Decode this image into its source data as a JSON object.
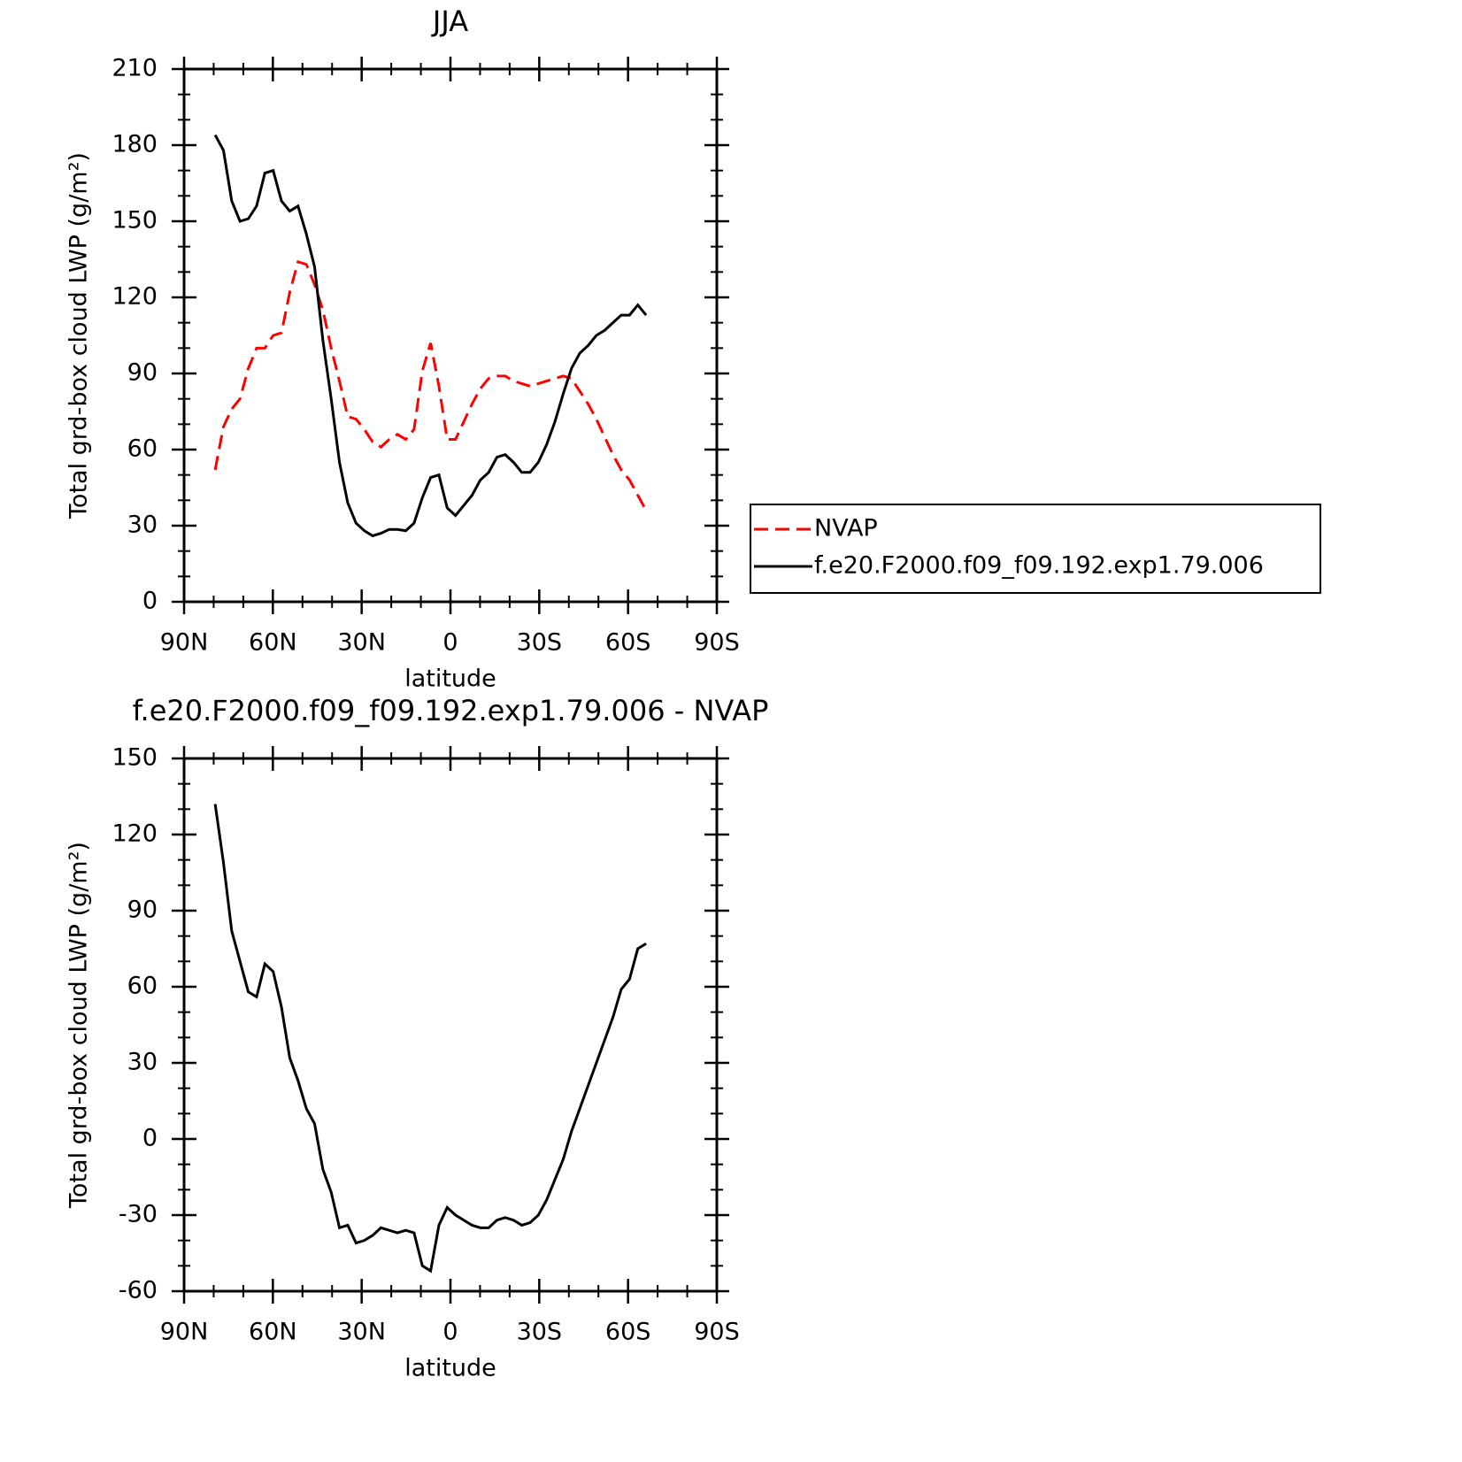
{
  "chart_data": [
    {
      "type": "line",
      "title": "JJA",
      "xlabel": "latitude",
      "ylabel": "Total grd-box cloud LWP (g/m²)",
      "x": [
        79.5,
        76.7,
        73.9,
        71.1,
        68.3,
        65.5,
        62.7,
        59.9,
        57.1,
        54.3,
        51.5,
        48.7,
        45.9,
        43.1,
        40.3,
        37.5,
        34.7,
        31.9,
        29.1,
        26.3,
        23.5,
        20.7,
        17.9,
        15.1,
        12.3,
        9.5,
        6.7,
        3.9,
        1.1,
        -1.7,
        -4.5,
        -7.3,
        -10.1,
        -12.9,
        -15.7,
        -18.5,
        -21.3,
        -24.1,
        -26.9,
        -29.7,
        -32.5,
        -35.3,
        -38.1,
        -40.9,
        -43.7,
        -46.5,
        -49.3,
        -52.1,
        -54.9,
        -57.7,
        -60.5,
        -63.3,
        -66.1
      ],
      "series": [
        {
          "name": "NVAP",
          "color": "#ff0000",
          "line_style": "dashed",
          "values": [
            52,
            69,
            76,
            80,
            92,
            100,
            100,
            105,
            106,
            122,
            134,
            133,
            125,
            115,
            100,
            87,
            73,
            72,
            68,
            63,
            61,
            64,
            66,
            64,
            68,
            91,
            102,
            85,
            64,
            64,
            71,
            78,
            84,
            88,
            89,
            89,
            87,
            86,
            85,
            86,
            87,
            88,
            89,
            88,
            83,
            78,
            72,
            65,
            58,
            52,
            48,
            42,
            36
          ]
        },
        {
          "name": "f.e20.F2000.f09_f09.192.exp1.79.006",
          "color": "#000000",
          "line_style": "solid",
          "values": [
            184,
            178,
            158,
            150,
            151,
            156,
            169,
            170,
            158,
            154,
            156,
            145,
            132,
            103,
            80,
            55,
            39,
            31,
            28,
            26,
            27,
            28.5,
            28.5,
            28,
            31,
            41,
            49,
            50,
            37,
            34,
            38,
            42,
            48,
            51,
            57,
            58,
            55,
            51,
            51,
            55,
            62,
            71,
            82,
            92,
            98,
            101,
            105,
            107,
            110,
            113,
            113,
            117,
            113
          ]
        }
      ],
      "xlim": [
        90,
        -90
      ],
      "xticks": [
        {
          "value": 90,
          "label": "90N"
        },
        {
          "value": 60,
          "label": "60N"
        },
        {
          "value": 30,
          "label": "30N"
        },
        0,
        {
          "value": -30,
          "label": "30S"
        },
        {
          "value": -60,
          "label": "60S"
        },
        {
          "value": -90,
          "label": "90S"
        }
      ],
      "ylim": [
        0,
        210
      ],
      "yticks": [
        0,
        30,
        60,
        90,
        120,
        150,
        180,
        210
      ],
      "legend": "right"
    },
    {
      "type": "line",
      "title": "f.e20.F2000.f09_f09.192.exp1.79.006 - NVAP",
      "xlabel": "latitude",
      "ylabel": "Total grd-box cloud LWP (g/m²)",
      "x": [
        79.5,
        76.7,
        73.9,
        71.1,
        68.3,
        65.5,
        62.7,
        59.9,
        57.1,
        54.3,
        51.5,
        48.7,
        45.9,
        43.1,
        40.3,
        37.5,
        34.7,
        31.9,
        29.1,
        26.3,
        23.5,
        20.7,
        17.9,
        15.1,
        12.3,
        9.5,
        6.7,
        3.9,
        1.1,
        -1.7,
        -4.5,
        -7.3,
        -10.1,
        -12.9,
        -15.7,
        -18.5,
        -21.3,
        -24.1,
        -26.9,
        -29.7,
        -32.5,
        -35.3,
        -38.1,
        -40.9,
        -43.7,
        -46.5,
        -49.3,
        -52.1,
        -54.9,
        -57.7,
        -60.5,
        -63.3,
        -66.1
      ],
      "series": [
        {
          "color": "#000000",
          "line_style": "solid",
          "values": [
            132,
            109,
            82,
            70,
            58,
            56,
            69,
            66,
            52,
            32,
            23,
            12,
            6,
            -12,
            -21,
            -35,
            -34,
            -41,
            -40,
            -38,
            -35,
            -36,
            -37,
            -36,
            -37,
            -50,
            -52,
            -34,
            -27,
            -30,
            -32,
            -34,
            -35,
            -35,
            -32,
            -31,
            -32,
            -34,
            -33,
            -30,
            -24,
            -16,
            -8,
            3,
            12,
            21,
            30,
            39,
            48,
            59,
            63,
            75,
            77
          ]
        }
      ],
      "xlim": [
        90,
        -90
      ],
      "xticks": [
        {
          "value": 90,
          "label": "90N"
        },
        {
          "value": 60,
          "label": "60N"
        },
        {
          "value": 30,
          "label": "30N"
        },
        0,
        {
          "value": -30,
          "label": "30S"
        },
        {
          "value": -60,
          "label": "60S"
        },
        {
          "value": -90,
          "label": "90S"
        }
      ],
      "ylim": [
        -60,
        150
      ],
      "yticks": [
        -60,
        -30,
        0,
        30,
        60,
        90,
        120,
        150
      ]
    }
  ]
}
